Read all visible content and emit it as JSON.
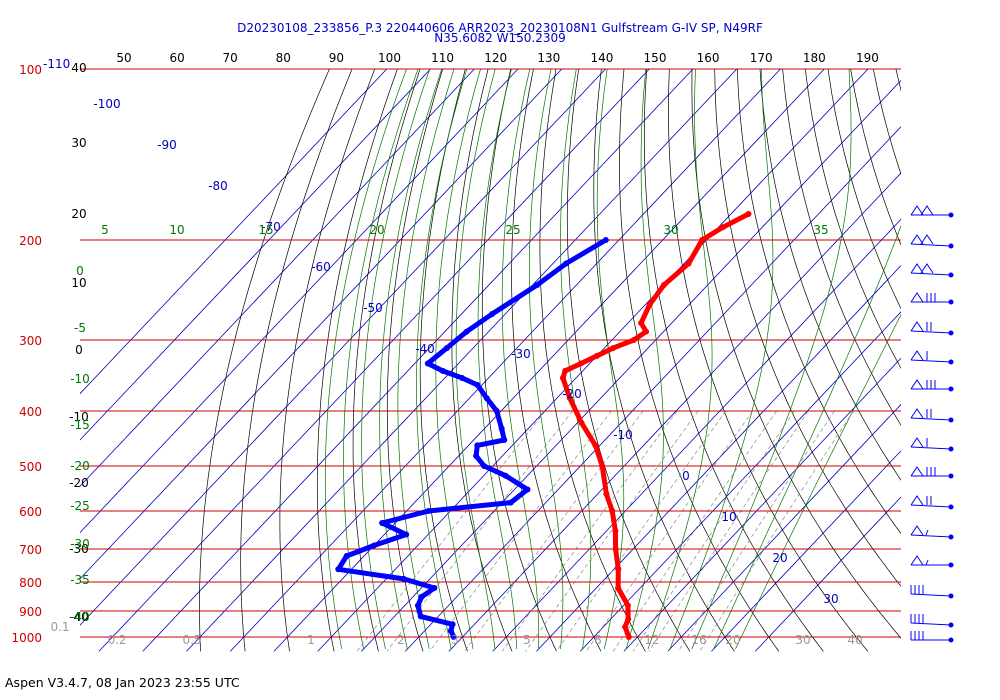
{
  "title_line1": "D20230108_233856_P.3 220440606 ARR2023_20230108N1 Gulfstream G-IV SP, N49RF",
  "title_line2": "N35.6082 W150.2309",
  "footer": "Aspen V3.4.7, 08 Jan 2023  23:55 UTC",
  "colors": {
    "isobar": "#cc0000",
    "isotherm": "#0000bb",
    "dry_adiabat": "#000000",
    "moist_adiabat": "#007700",
    "mixing_ratio": "#888888",
    "temperature": "#ff0000",
    "dewpoint": "#0000ff",
    "title": "#0000cc"
  },
  "chart_data": {
    "type": "skew-t log-p",
    "pressure_levels": [
      "100",
      "200",
      "300",
      "400",
      "500",
      "600",
      "700",
      "800",
      "900",
      "1000"
    ],
    "top_temperature_labels": [
      "50",
      "60",
      "70",
      "80",
      "90",
      "100",
      "110",
      "120",
      "130",
      "140",
      "150",
      "160",
      "170",
      "180",
      "190"
    ],
    "isotherm_labels": [
      "-110",
      "-100",
      "-90",
      "-80",
      "-70",
      "-60",
      "-50",
      "-40",
      "-30",
      "-20",
      "-10",
      "0",
      "10",
      "20",
      "30"
    ],
    "dry_adiabat_labels": [
      "40",
      "30",
      "20",
      "10",
      "0",
      "-10",
      "-20",
      "-30",
      "-40"
    ],
    "moist_adiabat_labels": [
      "5",
      "10",
      "15",
      "20",
      "25",
      "30",
      "35"
    ],
    "left_green_labels": [
      "0",
      "-5",
      "-10",
      "-15",
      "-20",
      "-25",
      "-30",
      "-35",
      "-40"
    ],
    "mixing_ratio_labels": [
      "0.1",
      "0.2",
      "0.5",
      "1",
      "2",
      "3",
      "5",
      "8",
      "12",
      "16",
      "20",
      "30",
      "40"
    ],
    "temperature_profile": [
      {
        "p": 180,
        "t": -46
      },
      {
        "p": 190,
        "t": -49
      },
      {
        "p": 200,
        "t": -51
      },
      {
        "p": 220,
        "t": -49
      },
      {
        "p": 240,
        "t": -50
      },
      {
        "p": 260,
        "t": -49
      },
      {
        "p": 280,
        "t": -47
      },
      {
        "p": 290,
        "t": -44
      },
      {
        "p": 300,
        "t": -45
      },
      {
        "p": 310,
        "t": -48
      },
      {
        "p": 320,
        "t": -50
      },
      {
        "p": 330,
        "t": -52
      },
      {
        "p": 340,
        "t": -54
      },
      {
        "p": 350,
        "t": -53
      },
      {
        "p": 380,
        "t": -47
      },
      {
        "p": 420,
        "t": -39
      },
      {
        "p": 460,
        "t": -31
      },
      {
        "p": 500,
        "t": -25
      },
      {
        "p": 560,
        "t": -18
      },
      {
        "p": 600,
        "t": -13
      },
      {
        "p": 650,
        "t": -8
      },
      {
        "p": 700,
        "t": -4
      },
      {
        "p": 760,
        "t": 1
      },
      {
        "p": 820,
        "t": 5
      },
      {
        "p": 880,
        "t": 11
      },
      {
        "p": 930,
        "t": 14
      },
      {
        "p": 960,
        "t": 15
      },
      {
        "p": 1000,
        "t": 18
      }
    ],
    "dewpoint_profile": [
      {
        "p": 200,
        "t": -73
      },
      {
        "p": 220,
        "t": -77
      },
      {
        "p": 240,
        "t": -79
      },
      {
        "p": 270,
        "t": -83
      },
      {
        "p": 290,
        "t": -85
      },
      {
        "p": 310,
        "t": -86
      },
      {
        "p": 330,
        "t": -87
      },
      {
        "p": 340,
        "t": -82
      },
      {
        "p": 350,
        "t": -76
      },
      {
        "p": 360,
        "t": -71
      },
      {
        "p": 380,
        "t": -66
      },
      {
        "p": 400,
        "t": -61
      },
      {
        "p": 430,
        "t": -56
      },
      {
        "p": 450,
        "t": -53
      },
      {
        "p": 460,
        "t": -58
      },
      {
        "p": 480,
        "t": -56
      },
      {
        "p": 500,
        "t": -52
      },
      {
        "p": 520,
        "t": -45
      },
      {
        "p": 550,
        "t": -37
      },
      {
        "p": 580,
        "t": -38
      },
      {
        "p": 600,
        "t": -55
      },
      {
        "p": 630,
        "t": -63
      },
      {
        "p": 660,
        "t": -55
      },
      {
        "p": 690,
        "t": -60
      },
      {
        "p": 720,
        "t": -64
      },
      {
        "p": 760,
        "t": -63
      },
      {
        "p": 790,
        "t": -46
      },
      {
        "p": 820,
        "t": -37
      },
      {
        "p": 850,
        "t": -38
      },
      {
        "p": 880,
        "t": -37
      },
      {
        "p": 920,
        "t": -34
      },
      {
        "p": 950,
        "t": -25
      },
      {
        "p": 975,
        "t": -24
      },
      {
        "p": 1000,
        "t": -22
      }
    ]
  }
}
